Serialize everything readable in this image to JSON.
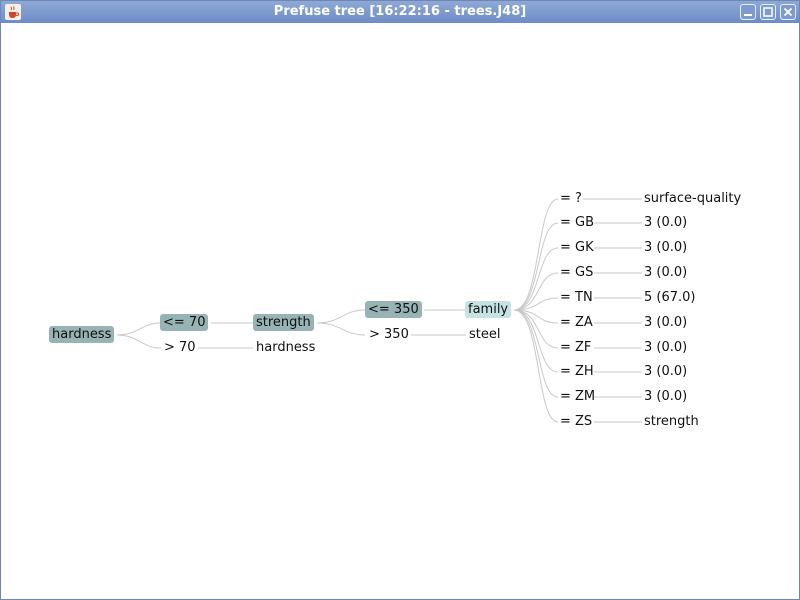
{
  "window": {
    "title": "Prefuse tree [16:22:16 - trees.J48]",
    "icon": "java-coffee-icon",
    "buttons": [
      "minimize-icon",
      "maximize-icon",
      "close-icon"
    ]
  },
  "tree": {
    "root": "hardness",
    "le70": "<= 70",
    "gt70": "> 70",
    "strength": "strength",
    "hardness_leaf": "hardness",
    "le350": "<= 350",
    "gt350": "> 350",
    "family": "family",
    "steel": "steel",
    "branches": [
      {
        "cond": "= ?",
        "result": "surface-quality"
      },
      {
        "cond": "= GB",
        "result": "3 (0.0)"
      },
      {
        "cond": "= GK",
        "result": "3 (0.0)"
      },
      {
        "cond": "= GS",
        "result": "3 (0.0)"
      },
      {
        "cond": "= TN",
        "result": "5 (67.0)"
      },
      {
        "cond": "= ZA",
        "result": "3 (0.0)"
      },
      {
        "cond": "= ZF",
        "result": "3 (0.0)"
      },
      {
        "cond": "= ZH",
        "result": "3 (0.0)"
      },
      {
        "cond": "= ZM",
        "result": "3 (0.0)"
      },
      {
        "cond": "= ZS",
        "result": "strength"
      }
    ]
  }
}
